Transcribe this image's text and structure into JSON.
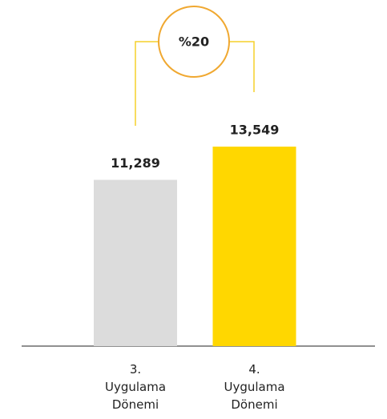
{
  "chart_data": {
    "type": "bar",
    "categories": [
      "3. Uygulama Dönemi",
      "4. Uygulama Dönemi"
    ],
    "values": [
      11289,
      13549
    ],
    "value_labels": [
      "11,289",
      "13,549"
    ],
    "colors": [
      "#dcdcdc",
      "#ffd700"
    ],
    "annotation": "%20"
  }
}
